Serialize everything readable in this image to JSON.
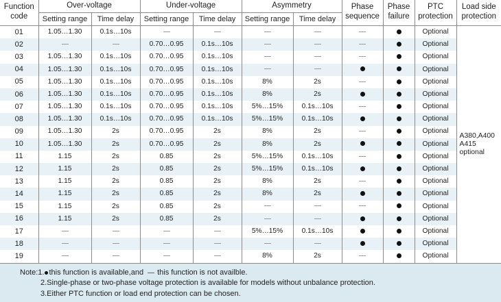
{
  "headers": {
    "function_code": "Function code",
    "over_voltage": "Over-voltage",
    "under_voltage": "Under-voltage",
    "asymmetry": "Asymmetry",
    "phase_sequence": "Phase sequence",
    "phase_failure": "Phase failure",
    "ptc_protection": "PTC protection",
    "load_side_protection": "Load side protection",
    "setting_range": "Setting range",
    "time_delay": "Time delay"
  },
  "symbols": {
    "available": "filled-dot",
    "not_available": "dash"
  },
  "rows": [
    {
      "code": "01",
      "ov_range": "1.05…1.30",
      "ov_delay": "0.1s…10s",
      "uv_range": "—",
      "uv_delay": "—",
      "as_range": "—",
      "as_delay": "—",
      "seq": "—",
      "fail": "●",
      "ptc": "Optional"
    },
    {
      "code": "02",
      "ov_range": "—",
      "ov_delay": "—",
      "uv_range": "0.70…0.95",
      "uv_delay": "0.1s…10s",
      "as_range": "—",
      "as_delay": "—",
      "seq": "—",
      "fail": "●",
      "ptc": "Optional"
    },
    {
      "code": "03",
      "ov_range": "1.05…1.30",
      "ov_delay": "0.1s…10s",
      "uv_range": "0.70…0.95",
      "uv_delay": "0.1s…10s",
      "as_range": "—",
      "as_delay": "—",
      "seq": "—",
      "fail": "●",
      "ptc": "Optional"
    },
    {
      "code": "04",
      "ov_range": "1.05…1.30",
      "ov_delay": "0.1s…10s",
      "uv_range": "0.70…0.95",
      "uv_delay": "0.1s…10s",
      "as_range": "—",
      "as_delay": "—",
      "seq": "●",
      "fail": "●",
      "ptc": "Optional"
    },
    {
      "code": "05",
      "ov_range": "1.05…1.30",
      "ov_delay": "0.1s…10s",
      "uv_range": "0.70…0.95",
      "uv_delay": "0.1s…10s",
      "as_range": "8%",
      "as_delay": "2s",
      "seq": "—",
      "fail": "●",
      "ptc": "Optional"
    },
    {
      "code": "06",
      "ov_range": "1.05…1.30",
      "ov_delay": "0.1s…10s",
      "uv_range": "0.70…0.95",
      "uv_delay": "0.1s…10s",
      "as_range": "8%",
      "as_delay": "2s",
      "seq": "●",
      "fail": "●",
      "ptc": "Optional"
    },
    {
      "code": "07",
      "ov_range": "1.05…1.30",
      "ov_delay": "0.1s…10s",
      "uv_range": "0.70…0.95",
      "uv_delay": "0.1s…10s",
      "as_range": "5%…15%",
      "as_delay": "0.1s…10s",
      "seq": "—",
      "fail": "●",
      "ptc": "Optional"
    },
    {
      "code": "08",
      "ov_range": "1.05…1.30",
      "ov_delay": "0.1s…10s",
      "uv_range": "0.70…0.95",
      "uv_delay": "0.1s…10s",
      "as_range": "5%…15%",
      "as_delay": "0.1s…10s",
      "seq": "●",
      "fail": "●",
      "ptc": "Optional"
    },
    {
      "code": "09",
      "ov_range": "1.05…1.30",
      "ov_delay": "2s",
      "uv_range": "0.70…0.95",
      "uv_delay": "2s",
      "as_range": "8%",
      "as_delay": "2s",
      "seq": "—",
      "fail": "●",
      "ptc": "Optional"
    },
    {
      "code": "10",
      "ov_range": "1.05…1.30",
      "ov_delay": "2s",
      "uv_range": "0.70…0.95",
      "uv_delay": "2s",
      "as_range": "8%",
      "as_delay": "2s",
      "seq": "●",
      "fail": "●",
      "ptc": "Optional"
    },
    {
      "code": "11",
      "ov_range": "1.15",
      "ov_delay": "2s",
      "uv_range": "0.85",
      "uv_delay": "2s",
      "as_range": "5%…15%",
      "as_delay": "0.1s…10s",
      "seq": "—",
      "fail": "●",
      "ptc": "Optional"
    },
    {
      "code": "12",
      "ov_range": "1.15",
      "ov_delay": "2s",
      "uv_range": "0.85",
      "uv_delay": "2s",
      "as_range": "5%…15%",
      "as_delay": "0.1s…10s",
      "seq": "●",
      "fail": "●",
      "ptc": "Optional"
    },
    {
      "code": "13",
      "ov_range": "1.15",
      "ov_delay": "2s",
      "uv_range": "0.85",
      "uv_delay": "2s",
      "as_range": "8%",
      "as_delay": "2s",
      "seq": "—",
      "fail": "●",
      "ptc": "Optional"
    },
    {
      "code": "14",
      "ov_range": "1.15",
      "ov_delay": "2s",
      "uv_range": "0.85",
      "uv_delay": "2s",
      "as_range": "8%",
      "as_delay": "2s",
      "seq": "●",
      "fail": "●",
      "ptc": "Optional"
    },
    {
      "code": "15",
      "ov_range": "1.15",
      "ov_delay": "2s",
      "uv_range": "0.85",
      "uv_delay": "2s",
      "as_range": "—",
      "as_delay": "—",
      "seq": "—",
      "fail": "●",
      "ptc": "Optional"
    },
    {
      "code": "16",
      "ov_range": "1.15",
      "ov_delay": "2s",
      "uv_range": "0.85",
      "uv_delay": "2s",
      "as_range": "—",
      "as_delay": "—",
      "seq": "●",
      "fail": "●",
      "ptc": "Optional"
    },
    {
      "code": "17",
      "ov_range": "—",
      "ov_delay": "—",
      "uv_range": "—",
      "uv_delay": "—",
      "as_range": "5%…15%",
      "as_delay": "0.1s…10s",
      "seq": "●",
      "fail": "●",
      "ptc": "Optional"
    },
    {
      "code": "18",
      "ov_range": "—",
      "ov_delay": "—",
      "uv_range": "—",
      "uv_delay": "—",
      "as_range": "—",
      "as_delay": "—",
      "seq": "●",
      "fail": "●",
      "ptc": "Optional"
    },
    {
      "code": "19",
      "ov_range": "—",
      "ov_delay": "—",
      "uv_range": "—",
      "uv_delay": "—",
      "as_range": "8%",
      "as_delay": "2s",
      "seq": "—",
      "fail": "●",
      "ptc": "Optional"
    }
  ],
  "load_side_note": "A380,A400 A415 optional",
  "notes": {
    "prefix": "Note:",
    "n1_a": "1.",
    "n1_b": "this function is available,and",
    "n1_c": "this function is not availble.",
    "n2": "2.Single-phase or two-phase voltage protection is available for models without unbalance protection.",
    "n3": "3.Either PTC function or load end protection can be chosen."
  }
}
